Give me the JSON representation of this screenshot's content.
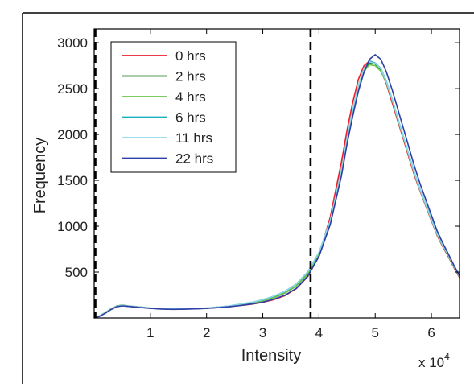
{
  "chart_data": {
    "type": "line",
    "xlabel": "Intensity",
    "ylabel": "Frequency",
    "x_multiplier_label": "x 10",
    "x_multiplier_exponent": "4",
    "xlim": [
      0,
      65000
    ],
    "ylim": [
      0,
      3150
    ],
    "xticks": [
      10000,
      20000,
      30000,
      40000,
      50000,
      60000
    ],
    "xtick_labels": [
      "1",
      "2",
      "3",
      "4",
      "5",
      "6"
    ],
    "yticks": [
      500,
      1000,
      1500,
      2000,
      2500,
      3000
    ],
    "ytick_labels": [
      "500",
      "1000",
      "1500",
      "2000",
      "2500",
      "3000"
    ],
    "grid": false,
    "legend_position": "top-left",
    "threshold_lines": [
      0,
      38500
    ],
    "x": [
      0,
      1000,
      2000,
      3000,
      4000,
      5000,
      6000,
      8000,
      10000,
      12000,
      14000,
      16000,
      18000,
      20000,
      22000,
      24000,
      26000,
      28000,
      30000,
      32000,
      34000,
      36000,
      38000,
      40000,
      42000,
      44000,
      45000,
      46000,
      47000,
      48000,
      49000,
      50000,
      51000,
      52000,
      53000,
      54000,
      55000,
      56000,
      57000,
      58000,
      59000,
      60000,
      61000,
      62000,
      63000,
      64000,
      65000
    ],
    "series": [
      {
        "name": "0 hrs",
        "color": "#e8212b",
        "values": [
          0,
          20,
          55,
          95,
          125,
          135,
          128,
          118,
          105,
          98,
          95,
          97,
          100,
          105,
          112,
          122,
          135,
          150,
          170,
          200,
          245,
          320,
          450,
          680,
          1100,
          1700,
          2050,
          2350,
          2600,
          2750,
          2800,
          2780,
          2700,
          2550,
          2350,
          2150,
          1950,
          1750,
          1550,
          1380,
          1220,
          1060,
          900,
          780,
          670,
          550,
          440
        ]
      },
      {
        "name": "2 hrs",
        "color": "#1b7a1b",
        "values": [
          0,
          25,
          60,
          100,
          130,
          140,
          132,
          120,
          108,
          100,
          97,
          99,
          102,
          108,
          118,
          130,
          148,
          165,
          190,
          225,
          275,
          350,
          480,
          700,
          1050,
          1600,
          1950,
          2250,
          2500,
          2680,
          2780,
          2770,
          2700,
          2560,
          2380,
          2170,
          1970,
          1770,
          1570,
          1390,
          1230,
          1070,
          910,
          790,
          680,
          560,
          450
        ]
      },
      {
        "name": "4 hrs",
        "color": "#6cc34a",
        "values": [
          0,
          24,
          58,
          98,
          128,
          138,
          130,
          118,
          106,
          99,
          96,
          98,
          101,
          107,
          117,
          128,
          146,
          162,
          187,
          222,
          272,
          348,
          478,
          705,
          1060,
          1610,
          1960,
          2260,
          2510,
          2690,
          2760,
          2750,
          2690,
          2560,
          2380,
          2170,
          1970,
          1770,
          1570,
          1390,
          1230,
          1070,
          910,
          790,
          680,
          560,
          450
        ]
      },
      {
        "name": "6 hrs",
        "color": "#19b2c0",
        "values": [
          0,
          22,
          56,
          96,
          126,
          136,
          129,
          118,
          106,
          99,
          96,
          98,
          102,
          108,
          118,
          130,
          150,
          170,
          198,
          238,
          292,
          372,
          502,
          715,
          1060,
          1600,
          1960,
          2270,
          2530,
          2720,
          2800,
          2780,
          2720,
          2580,
          2390,
          2180,
          1980,
          1780,
          1580,
          1400,
          1240,
          1080,
          920,
          800,
          690,
          570,
          455
        ]
      },
      {
        "name": "11 hrs",
        "color": "#8fd7ea",
        "values": [
          0,
          23,
          57,
          97,
          127,
          137,
          130,
          119,
          107,
          100,
          97,
          99,
          103,
          109,
          119,
          131,
          151,
          171,
          199,
          239,
          293,
          373,
          503,
          716,
          1062,
          1602,
          1962,
          2272,
          2532,
          2722,
          2790,
          2775,
          2715,
          2575,
          2385,
          2175,
          1975,
          1775,
          1575,
          1395,
          1235,
          1075,
          915,
          795,
          685,
          565,
          452
        ]
      },
      {
        "name": "22 hrs",
        "color": "#2e3fa8",
        "values": [
          0,
          18,
          52,
          92,
          122,
          132,
          126,
          115,
          104,
          97,
          94,
          96,
          99,
          104,
          112,
          122,
          136,
          152,
          172,
          205,
          250,
          325,
          455,
          670,
          1020,
          1550,
          1900,
          2200,
          2470,
          2680,
          2820,
          2870,
          2820,
          2680,
          2490,
          2280,
          2070,
          1860,
          1650,
          1460,
          1290,
          1120,
          950,
          820,
          700,
          575,
          460
        ]
      }
    ]
  }
}
